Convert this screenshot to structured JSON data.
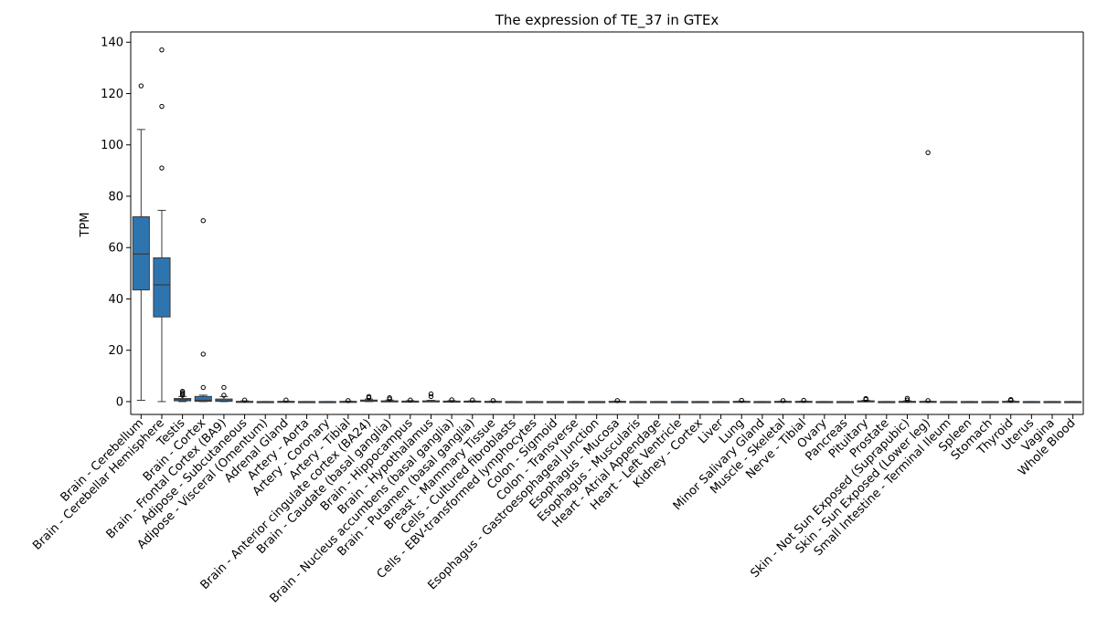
{
  "chart_data": {
    "type": "box",
    "title": "The expression of TE_37 in GTEx",
    "xlabel": "",
    "ylabel": "TPM",
    "ylim": [
      -5,
      144
    ],
    "yticks": [
      0,
      20,
      40,
      60,
      80,
      100,
      120,
      140
    ],
    "grid": false,
    "legend": "none",
    "colors": {
      "box": "#2e75b0",
      "edge": "#3a3a3a",
      "axis": "#000000",
      "background": "#ffffff"
    },
    "categories": [
      "Brain - Cerebellum",
      "Brain - Cerebellar Hemisphere",
      "Testis",
      "Brain - Cortex",
      "Brain - Frontal Cortex (BA9)",
      "Adipose - Subcutaneous",
      "Adipose - Visceral (Omentum)",
      "Adrenal Gland",
      "Artery - Aorta",
      "Artery - Coronary",
      "Artery - Tibial",
      "Brain - Anterior cingulate cortex (BA24)",
      "Brain - Caudate (basal ganglia)",
      "Brain - Hippocampus",
      "Brain - Hypothalamus",
      "Brain - Nucleus accumbens (basal ganglia)",
      "Brain - Putamen (basal ganglia)",
      "Breast - Mammary Tissue",
      "Cells - Cultured fibroblasts",
      "Cells - EBV-transformed lymphocytes",
      "Colon - Sigmoid",
      "Colon - Transverse",
      "Esophagus - Gastroesophageal Junction",
      "Esophagus - Mucosa",
      "Esophagus - Muscularis",
      "Heart - Atrial Appendage",
      "Heart - Left Ventricle",
      "Kidney - Cortex",
      "Liver",
      "Lung",
      "Minor Salivary Gland",
      "Muscle - Skeletal",
      "Nerve - Tibial",
      "Ovary",
      "Pancreas",
      "Pituitary",
      "Prostate",
      "Skin - Not Sun Exposed (Suprapubic)",
      "Skin - Sun Exposed (Lower leg)",
      "Small Intestine - Terminal Ileum",
      "Spleen",
      "Stomach",
      "Thyroid",
      "Uterus",
      "Vagina",
      "Whole Blood"
    ],
    "boxes": [
      {
        "min": 0.5,
        "q1": 43.5,
        "median": 57.5,
        "q3": 72,
        "max": 106,
        "outliers": [
          123
        ]
      },
      {
        "min": 0,
        "q1": 33,
        "median": 45.5,
        "q3": 56,
        "max": 74.5,
        "outliers": [
          91,
          115,
          137
        ]
      },
      {
        "min": 0,
        "q1": 0.3,
        "median": 0.8,
        "q3": 1.2,
        "max": 2,
        "outliers": [
          2.5,
          3,
          3.5,
          4
        ]
      },
      {
        "min": 0,
        "q1": 0.1,
        "median": 0.5,
        "q3": 2,
        "max": 2.5,
        "outliers": [
          5.5,
          18.5,
          70.5
        ]
      },
      {
        "min": 0,
        "q1": 0.1,
        "median": 0.3,
        "q3": 1,
        "max": 2,
        "outliers": [
          2.5,
          5.5
        ]
      },
      {
        "min": 0,
        "q1": 0,
        "median": 0,
        "q3": 0.1,
        "max": 0.3,
        "outliers": [
          0.6
        ]
      },
      {
        "min": 0,
        "q1": 0,
        "median": 0,
        "q3": 0,
        "max": 0,
        "outliers": []
      },
      {
        "min": 0,
        "q1": 0,
        "median": 0,
        "q3": 0.1,
        "max": 0.2,
        "outliers": [
          0.6
        ]
      },
      {
        "min": 0,
        "q1": 0,
        "median": 0,
        "q3": 0,
        "max": 0,
        "outliers": []
      },
      {
        "min": 0,
        "q1": 0,
        "median": 0,
        "q3": 0,
        "max": 0,
        "outliers": []
      },
      {
        "min": 0,
        "q1": 0,
        "median": 0,
        "q3": 0.1,
        "max": 0.2,
        "outliers": [
          0.4
        ]
      },
      {
        "min": 0,
        "q1": 0.1,
        "median": 0.3,
        "q3": 0.6,
        "max": 1,
        "outliers": [
          1.5,
          2
        ]
      },
      {
        "min": 0,
        "q1": 0,
        "median": 0.1,
        "q3": 0.3,
        "max": 0.6,
        "outliers": [
          1,
          1.5
        ]
      },
      {
        "min": 0,
        "q1": 0,
        "median": 0.1,
        "q3": 0.2,
        "max": 0.4,
        "outliers": [
          0.6
        ]
      },
      {
        "min": 0,
        "q1": 0,
        "median": 0.1,
        "q3": 0.3,
        "max": 0.5,
        "outliers": [
          2,
          3
        ]
      },
      {
        "min": 0,
        "q1": 0,
        "median": 0,
        "q3": 0.2,
        "max": 0.4,
        "outliers": [
          0.7
        ]
      },
      {
        "min": 0,
        "q1": 0,
        "median": 0,
        "q3": 0.2,
        "max": 0.3,
        "outliers": [
          0.6
        ]
      },
      {
        "min": 0,
        "q1": 0,
        "median": 0,
        "q3": 0.1,
        "max": 0.2,
        "outliers": [
          0.4
        ]
      },
      {
        "min": 0,
        "q1": 0,
        "median": 0,
        "q3": 0,
        "max": 0,
        "outliers": []
      },
      {
        "min": 0,
        "q1": 0,
        "median": 0,
        "q3": 0,
        "max": 0,
        "outliers": []
      },
      {
        "min": 0,
        "q1": 0,
        "median": 0,
        "q3": 0,
        "max": 0,
        "outliers": []
      },
      {
        "min": 0,
        "q1": 0,
        "median": 0,
        "q3": 0,
        "max": 0,
        "outliers": []
      },
      {
        "min": 0,
        "q1": 0,
        "median": 0,
        "q3": 0,
        "max": 0,
        "outliers": []
      },
      {
        "min": 0,
        "q1": 0,
        "median": 0,
        "q3": 0.1,
        "max": 0.2,
        "outliers": [
          0.4
        ]
      },
      {
        "min": 0,
        "q1": 0,
        "median": 0,
        "q3": 0,
        "max": 0,
        "outliers": []
      },
      {
        "min": 0,
        "q1": 0,
        "median": 0,
        "q3": 0,
        "max": 0,
        "outliers": []
      },
      {
        "min": 0,
        "q1": 0,
        "median": 0,
        "q3": 0,
        "max": 0,
        "outliers": []
      },
      {
        "min": 0,
        "q1": 0,
        "median": 0,
        "q3": 0,
        "max": 0,
        "outliers": []
      },
      {
        "min": 0,
        "q1": 0,
        "median": 0,
        "q3": 0,
        "max": 0,
        "outliers": []
      },
      {
        "min": 0,
        "q1": 0,
        "median": 0,
        "q3": 0.1,
        "max": 0.2,
        "outliers": [
          0.5
        ]
      },
      {
        "min": 0,
        "q1": 0,
        "median": 0,
        "q3": 0,
        "max": 0,
        "outliers": []
      },
      {
        "min": 0,
        "q1": 0,
        "median": 0,
        "q3": 0.1,
        "max": 0.2,
        "outliers": [
          0.4
        ]
      },
      {
        "min": 0,
        "q1": 0,
        "median": 0,
        "q3": 0.1,
        "max": 0.2,
        "outliers": [
          0.5
        ]
      },
      {
        "min": 0,
        "q1": 0,
        "median": 0,
        "q3": 0,
        "max": 0,
        "outliers": []
      },
      {
        "min": 0,
        "q1": 0,
        "median": 0,
        "q3": 0,
        "max": 0,
        "outliers": []
      },
      {
        "min": 0,
        "q1": 0,
        "median": 0.1,
        "q3": 0.3,
        "max": 0.5,
        "outliers": [
          0.8,
          1.2
        ]
      },
      {
        "min": 0,
        "q1": 0,
        "median": 0,
        "q3": 0,
        "max": 0,
        "outliers": []
      },
      {
        "min": 0,
        "q1": 0,
        "median": 0,
        "q3": 0.1,
        "max": 0.3,
        "outliers": [
          0.6,
          1.3
        ]
      },
      {
        "min": 0,
        "q1": 0,
        "median": 0,
        "q3": 0.1,
        "max": 0.2,
        "outliers": [
          0.4,
          97
        ]
      },
      {
        "min": 0,
        "q1": 0,
        "median": 0,
        "q3": 0,
        "max": 0,
        "outliers": []
      },
      {
        "min": 0,
        "q1": 0,
        "median": 0,
        "q3": 0,
        "max": 0,
        "outliers": []
      },
      {
        "min": 0,
        "q1": 0,
        "median": 0,
        "q3": 0,
        "max": 0,
        "outliers": []
      },
      {
        "min": 0,
        "q1": 0,
        "median": 0,
        "q3": 0.1,
        "max": 0.3,
        "outliers": [
          0.5,
          0.8
        ]
      },
      {
        "min": 0,
        "q1": 0,
        "median": 0,
        "q3": 0,
        "max": 0,
        "outliers": []
      },
      {
        "min": 0,
        "q1": 0,
        "median": 0,
        "q3": 0,
        "max": 0,
        "outliers": []
      },
      {
        "min": 0,
        "q1": 0,
        "median": 0,
        "q3": 0,
        "max": 0,
        "outliers": []
      }
    ]
  }
}
